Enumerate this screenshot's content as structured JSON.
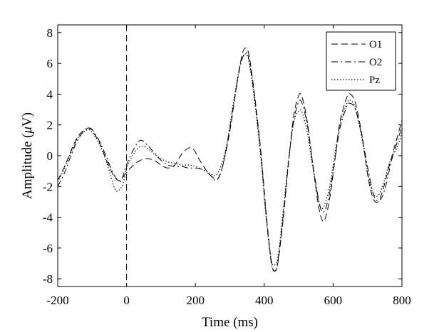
{
  "chart_data": {
    "type": "line",
    "xlabel": "Time (ms)",
    "ylabel_main": "Amplitude (",
    "ylabel_mu": "μ",
    "ylabel_tail": "V)",
    "xlim": [
      -200,
      800
    ],
    "ylim": [
      -8.5,
      8.5
    ],
    "xticks": [
      -200,
      0,
      200,
      400,
      600,
      800
    ],
    "yticks": [
      8,
      6,
      4,
      2,
      0,
      -2,
      -4,
      -6,
      -8
    ],
    "ytick_labels": [
      "8",
      "6",
      "4",
      "2",
      "0",
      "-2",
      "-4",
      "-6",
      "-8"
    ],
    "stimulus_onset_x": 0,
    "legend_position": "top-right",
    "grid": false,
    "series": [
      {
        "name": "O1",
        "style": "dashed",
        "points": [
          [
            -200,
            -1.6
          ],
          [
            -180,
            -0.7
          ],
          [
            -160,
            0.4
          ],
          [
            -140,
            1.3
          ],
          [
            -120,
            1.7
          ],
          [
            -110,
            1.8
          ],
          [
            -100,
            1.6
          ],
          [
            -80,
            0.9
          ],
          [
            -60,
            -0.2
          ],
          [
            -40,
            -1.2
          ],
          [
            -25,
            -1.6
          ],
          [
            -15,
            -1.5
          ],
          [
            0,
            -1.1
          ],
          [
            20,
            -0.6
          ],
          [
            40,
            -0.3
          ],
          [
            60,
            -0.2
          ],
          [
            80,
            -0.3
          ],
          [
            100,
            -0.6
          ],
          [
            120,
            -0.8
          ],
          [
            140,
            -0.6
          ],
          [
            160,
            0.1
          ],
          [
            180,
            0.5
          ],
          [
            195,
            0.4
          ],
          [
            210,
            -0.2
          ],
          [
            230,
            -0.9
          ],
          [
            250,
            -1.4
          ],
          [
            265,
            -1.5
          ],
          [
            280,
            -0.6
          ],
          [
            300,
            1.6
          ],
          [
            320,
            4.6
          ],
          [
            335,
            6.5
          ],
          [
            345,
            7.0
          ],
          [
            355,
            6.6
          ],
          [
            370,
            4.3
          ],
          [
            390,
            0.3
          ],
          [
            405,
            -3.6
          ],
          [
            420,
            -6.8
          ],
          [
            430,
            -7.5
          ],
          [
            440,
            -6.9
          ],
          [
            455,
            -4.1
          ],
          [
            470,
            -0.6
          ],
          [
            485,
            2.5
          ],
          [
            500,
            3.9
          ],
          [
            510,
            3.8
          ],
          [
            525,
            2.2
          ],
          [
            540,
            -0.4
          ],
          [
            555,
            -2.9
          ],
          [
            565,
            -4.0
          ],
          [
            575,
            -4.2
          ],
          [
            590,
            -2.8
          ],
          [
            605,
            -0.3
          ],
          [
            620,
            2.2
          ],
          [
            640,
            3.8
          ],
          [
            650,
            4.0
          ],
          [
            665,
            3.4
          ],
          [
            685,
            1.2
          ],
          [
            700,
            -1.2
          ],
          [
            715,
            -2.7
          ],
          [
            730,
            -3.0
          ],
          [
            745,
            -2.2
          ],
          [
            765,
            -0.5
          ],
          [
            785,
            1.1
          ],
          [
            800,
            2.3
          ]
        ]
      },
      {
        "name": "O2",
        "style": "dashdot",
        "points": [
          [
            -200,
            -2.0
          ],
          [
            -180,
            -1.1
          ],
          [
            -160,
            0.1
          ],
          [
            -140,
            1.1
          ],
          [
            -120,
            1.7
          ],
          [
            -110,
            1.8
          ],
          [
            -100,
            1.7
          ],
          [
            -80,
            1.0
          ],
          [
            -60,
            0.0
          ],
          [
            -40,
            -1.1
          ],
          [
            -25,
            -1.6
          ],
          [
            -15,
            -1.6
          ],
          [
            0,
            -0.6
          ],
          [
            20,
            0.4
          ],
          [
            40,
            1.0
          ],
          [
            60,
            0.7
          ],
          [
            80,
            0.2
          ],
          [
            100,
            -0.3
          ],
          [
            120,
            -0.6
          ],
          [
            140,
            -0.7
          ],
          [
            160,
            -0.7
          ],
          [
            180,
            -0.8
          ],
          [
            200,
            -0.8
          ],
          [
            220,
            -0.9
          ],
          [
            240,
            -1.2
          ],
          [
            260,
            -1.6
          ],
          [
            275,
            -1.0
          ],
          [
            290,
            0.5
          ],
          [
            310,
            3.2
          ],
          [
            330,
            5.8
          ],
          [
            345,
            6.7
          ],
          [
            355,
            6.3
          ],
          [
            370,
            4.1
          ],
          [
            390,
            0.1
          ],
          [
            405,
            -3.8
          ],
          [
            420,
            -6.9
          ],
          [
            430,
            -7.5
          ],
          [
            440,
            -6.8
          ],
          [
            455,
            -3.9
          ],
          [
            470,
            -0.5
          ],
          [
            485,
            2.2
          ],
          [
            500,
            3.5
          ],
          [
            510,
            3.4
          ],
          [
            525,
            2.0
          ],
          [
            540,
            -0.4
          ],
          [
            555,
            -2.5
          ],
          [
            565,
            -3.5
          ],
          [
            575,
            -3.6
          ],
          [
            590,
            -2.4
          ],
          [
            605,
            -0.3
          ],
          [
            620,
            1.8
          ],
          [
            640,
            3.2
          ],
          [
            650,
            3.4
          ],
          [
            665,
            3.0
          ],
          [
            685,
            1.1
          ],
          [
            705,
            -1.3
          ],
          [
            720,
            -2.7
          ],
          [
            735,
            -2.9
          ],
          [
            750,
            -2.2
          ],
          [
            770,
            -0.3
          ],
          [
            785,
            0.8
          ],
          [
            800,
            1.9
          ]
        ]
      },
      {
        "name": "Pz",
        "style": "dotted",
        "points": [
          [
            -200,
            -1.7
          ],
          [
            -180,
            -0.8
          ],
          [
            -160,
            0.3
          ],
          [
            -140,
            1.2
          ],
          [
            -120,
            1.6
          ],
          [
            -110,
            1.7
          ],
          [
            -100,
            1.5
          ],
          [
            -80,
            0.8
          ],
          [
            -60,
            -0.3
          ],
          [
            -45,
            -1.4
          ],
          [
            -35,
            -2.1
          ],
          [
            -25,
            -2.3
          ],
          [
            -10,
            -1.8
          ],
          [
            0,
            -0.8
          ],
          [
            20,
            0.1
          ],
          [
            40,
            0.6
          ],
          [
            60,
            0.5
          ],
          [
            80,
            0.1
          ],
          [
            100,
            -0.2
          ],
          [
            120,
            -0.4
          ],
          [
            140,
            -0.5
          ],
          [
            160,
            -0.6
          ],
          [
            180,
            -0.6
          ],
          [
            200,
            -0.7
          ],
          [
            220,
            -0.9
          ],
          [
            240,
            -1.1
          ],
          [
            255,
            -1.3
          ],
          [
            270,
            -0.9
          ],
          [
            290,
            0.6
          ],
          [
            310,
            3.4
          ],
          [
            330,
            5.9
          ],
          [
            345,
            6.6
          ],
          [
            355,
            6.2
          ],
          [
            370,
            3.9
          ],
          [
            390,
            -0.1
          ],
          [
            405,
            -3.9
          ],
          [
            420,
            -6.7
          ],
          [
            430,
            -7.1
          ],
          [
            440,
            -6.5
          ],
          [
            455,
            -3.6
          ],
          [
            470,
            -0.4
          ],
          [
            485,
            2.1
          ],
          [
            500,
            2.9
          ],
          [
            510,
            2.8
          ],
          [
            525,
            1.5
          ],
          [
            540,
            -0.6
          ],
          [
            555,
            -2.6
          ],
          [
            565,
            -3.4
          ],
          [
            575,
            -3.2
          ],
          [
            590,
            -2.0
          ],
          [
            605,
            0.1
          ],
          [
            620,
            2.0
          ],
          [
            640,
            3.4
          ],
          [
            650,
            3.6
          ],
          [
            665,
            3.1
          ],
          [
            685,
            1.0
          ],
          [
            700,
            -1.0
          ],
          [
            715,
            -2.4
          ],
          [
            730,
            -2.6
          ],
          [
            745,
            -1.9
          ],
          [
            765,
            -0.4
          ],
          [
            785,
            0.5
          ],
          [
            800,
            1.5
          ]
        ]
      }
    ]
  }
}
